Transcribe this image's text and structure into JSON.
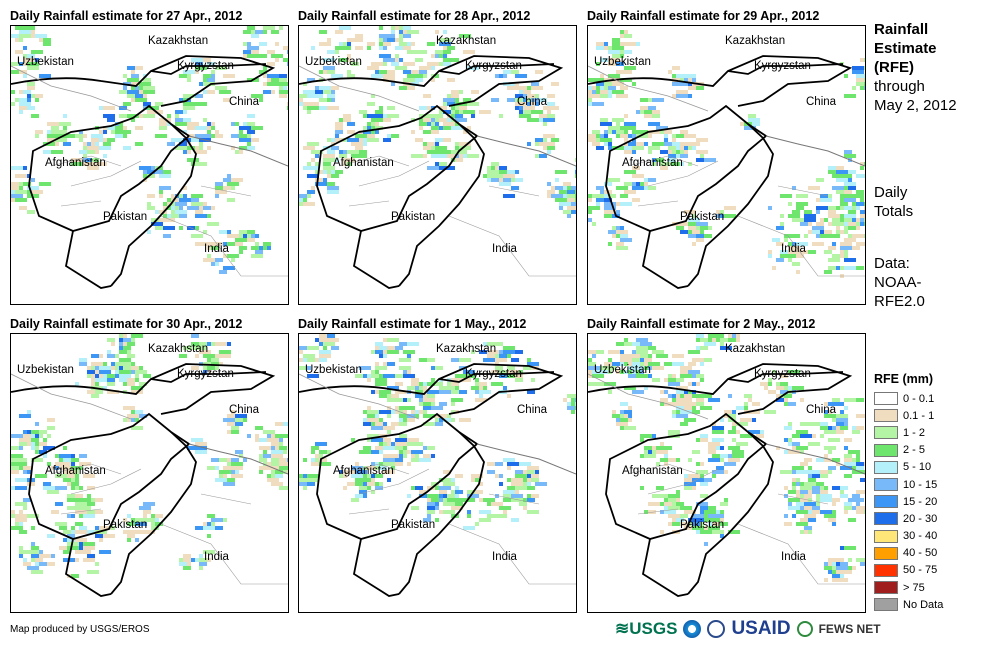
{
  "panels": [
    {
      "title": "Daily Rainfall estimate for 27 Apr., 2012"
    },
    {
      "title": "Daily Rainfall estimate for 28 Apr., 2012"
    },
    {
      "title": "Daily Rainfall estimate for 29 Apr., 2012"
    },
    {
      "title": "Daily Rainfall estimate for 30 Apr., 2012"
    },
    {
      "title": "Daily Rainfall estimate for 1 May., 2012"
    },
    {
      "title": "Daily Rainfall estimate for 2 May., 2012"
    }
  ],
  "map_labels": {
    "kazakhstan": "Kazakhstan",
    "uzbekistan": "Uzbekistan",
    "kyrgyzstan": "Kyrgyzstan",
    "china": "China",
    "afghanistan": "Afghanistan",
    "pakistan": "Pakistan",
    "india": "India"
  },
  "side": {
    "title1": "Rainfall",
    "title2": "Estimate",
    "title3": "(RFE)",
    "through": "through",
    "date": "May 2, 2012",
    "daily1": "Daily",
    "daily2": "Totals",
    "data1": "Data:",
    "data2": "NOAA-",
    "data3": "RFE2.0"
  },
  "legend": {
    "title": "RFE (mm)",
    "items": [
      {
        "label": "0 - 0.1",
        "color": "#ffffff"
      },
      {
        "label": "0.1 - 1",
        "color": "#f0dcbe"
      },
      {
        "label": "1 - 2",
        "color": "#b4f5a5"
      },
      {
        "label": "2 - 5",
        "color": "#6ee66e"
      },
      {
        "label": "5 - 10",
        "color": "#b4f0fa"
      },
      {
        "label": "10 - 15",
        "color": "#78b9fa"
      },
      {
        "label": "15 - 20",
        "color": "#3c96f5"
      },
      {
        "label": "20 - 30",
        "color": "#1e6eeb"
      },
      {
        "label": "30 - 40",
        "color": "#ffe678"
      },
      {
        "label": "40 - 50",
        "color": "#ffa000"
      },
      {
        "label": "50 - 75",
        "color": "#ff3200"
      },
      {
        "label": "> 75",
        "color": "#a01e1e"
      },
      {
        "label": "No Data",
        "color": "#a0a0a0"
      }
    ]
  },
  "credit": "Map produced by USGS/EROS",
  "logos": {
    "usgs": "USGS",
    "usaid": "USAID",
    "fews": "FEWS NET"
  }
}
